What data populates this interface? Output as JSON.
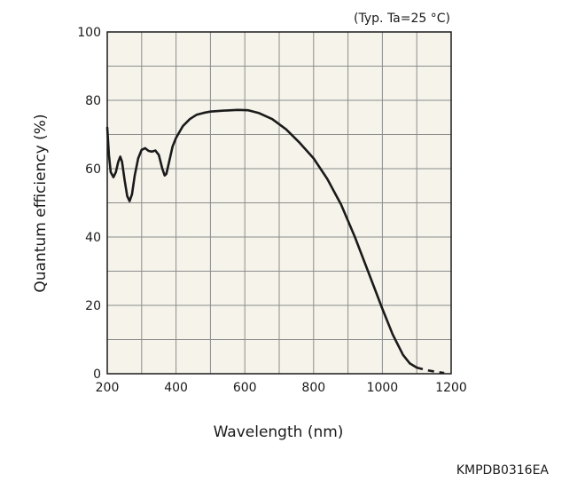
{
  "chart_data": {
    "type": "line",
    "xlabel": "Wavelength (nm)",
    "ylabel": "Quantum efficiency (%)",
    "condition_note": "(Typ. Ta=25 °C)",
    "xlim": [
      200,
      1200
    ],
    "ylim": [
      0,
      100
    ],
    "x_ticks": [
      200,
      400,
      600,
      800,
      1000,
      1200
    ],
    "y_ticks": [
      0,
      20,
      40,
      60,
      80,
      100
    ],
    "x_grid_step": 100,
    "y_grid_step": 10,
    "grid": true,
    "series": [
      {
        "line_color": "#1a1a1a",
        "points": [
          [
            200,
            72
          ],
          [
            205,
            64
          ],
          [
            210,
            59
          ],
          [
            218,
            57.5
          ],
          [
            225,
            59
          ],
          [
            232,
            62
          ],
          [
            238,
            63.5
          ],
          [
            243,
            62
          ],
          [
            250,
            57
          ],
          [
            258,
            52
          ],
          [
            265,
            50.5
          ],
          [
            272,
            52.5
          ],
          [
            280,
            58
          ],
          [
            290,
            63
          ],
          [
            300,
            65.5
          ],
          [
            310,
            66
          ],
          [
            320,
            65.2
          ],
          [
            330,
            65
          ],
          [
            340,
            65.3
          ],
          [
            350,
            64
          ],
          [
            360,
            60
          ],
          [
            367,
            58
          ],
          [
            372,
            58.5
          ],
          [
            380,
            62
          ],
          [
            390,
            66.5
          ],
          [
            400,
            69
          ],
          [
            420,
            72.5
          ],
          [
            440,
            74.5
          ],
          [
            460,
            75.8
          ],
          [
            480,
            76.3
          ],
          [
            500,
            76.7
          ],
          [
            540,
            77
          ],
          [
            580,
            77.2
          ],
          [
            610,
            77.1
          ],
          [
            640,
            76.3
          ],
          [
            680,
            74.5
          ],
          [
            720,
            71.5
          ],
          [
            760,
            67.5
          ],
          [
            800,
            63
          ],
          [
            840,
            57
          ],
          [
            880,
            49.5
          ],
          [
            920,
            40
          ],
          [
            960,
            29.5
          ],
          [
            1000,
            19
          ],
          [
            1030,
            11.5
          ],
          [
            1060,
            5.5
          ],
          [
            1080,
            3
          ],
          [
            1100,
            1.8
          ]
        ]
      },
      {
        "line_color": "#1a1a1a",
        "dashed": true,
        "points": [
          [
            1100,
            1.8
          ],
          [
            1130,
            1.0
          ],
          [
            1160,
            0.5
          ],
          [
            1180,
            0.2
          ]
        ]
      }
    ]
  },
  "figure_code": "KMPDB0316EA",
  "colors": {
    "plot_background": "#f5f3ea",
    "grid": "#8c8c8c",
    "frame": "#1a1a1a",
    "curve": "#1a1a1a"
  }
}
